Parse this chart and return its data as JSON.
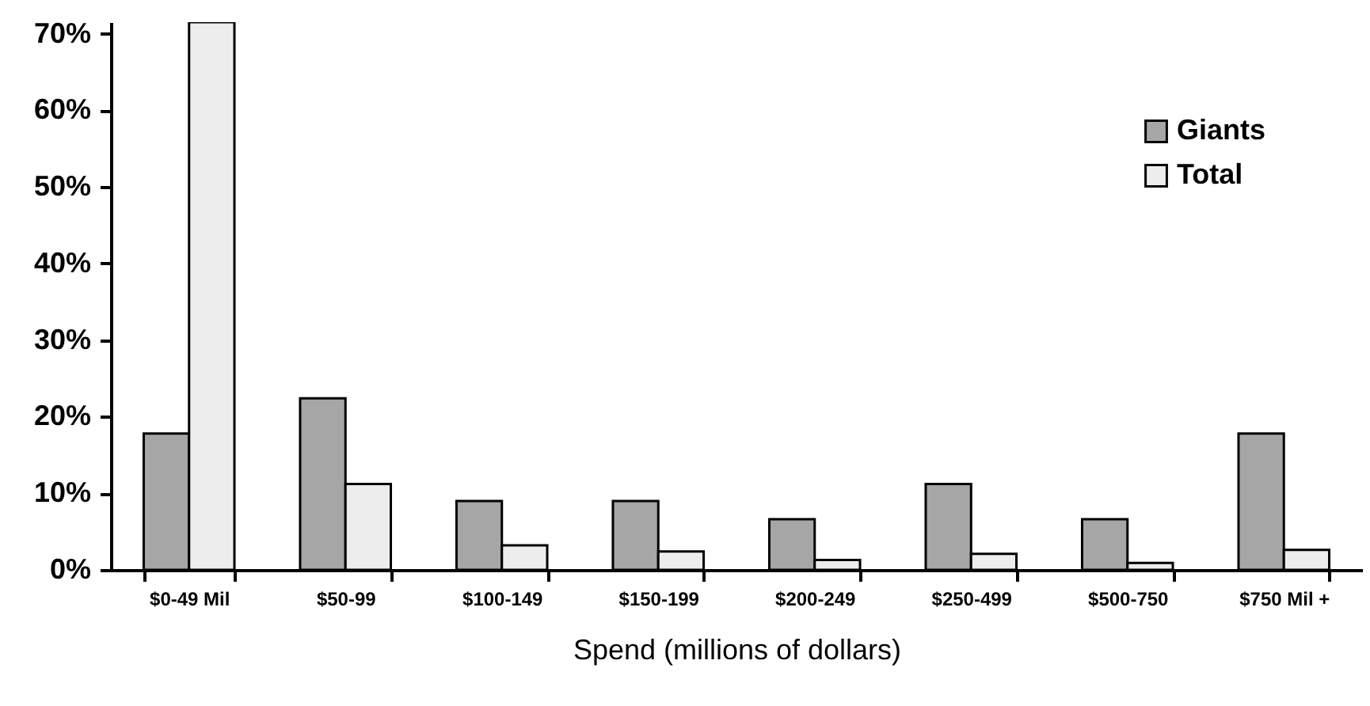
{
  "chart_data": {
    "type": "bar",
    "xlabel": "Spend (millions of dollars)",
    "categories": [
      "$0-49 Mil",
      "$50-99",
      "$100-149",
      "$150-199",
      "$200-249",
      "$250-499",
      "$500-750",
      "$750 Mil +"
    ],
    "series": [
      {
        "name": "Giants",
        "color": "#a6a6a6",
        "values": [
          17.8,
          22.4,
          9.0,
          9.0,
          6.6,
          11.2,
          6.6,
          17.8
        ]
      },
      {
        "name": "Total",
        "color": "#ededed",
        "values": [
          71.5,
          11.2,
          3.2,
          2.4,
          1.3,
          2.1,
          0.9,
          2.6
        ]
      }
    ],
    "ylim": [
      0,
      71.5
    ],
    "yticks": [
      {
        "value": 0,
        "label": "0%"
      },
      {
        "value": 10,
        "label": "10%"
      },
      {
        "value": 20,
        "label": "20%"
      },
      {
        "value": 30,
        "label": "30%"
      },
      {
        "value": 40,
        "label": "40%"
      },
      {
        "value": 50,
        "label": "50%"
      },
      {
        "value": 60,
        "label": "60%"
      },
      {
        "value": 70,
        "label": "70%"
      }
    ],
    "legend": "top right",
    "grid": false
  }
}
